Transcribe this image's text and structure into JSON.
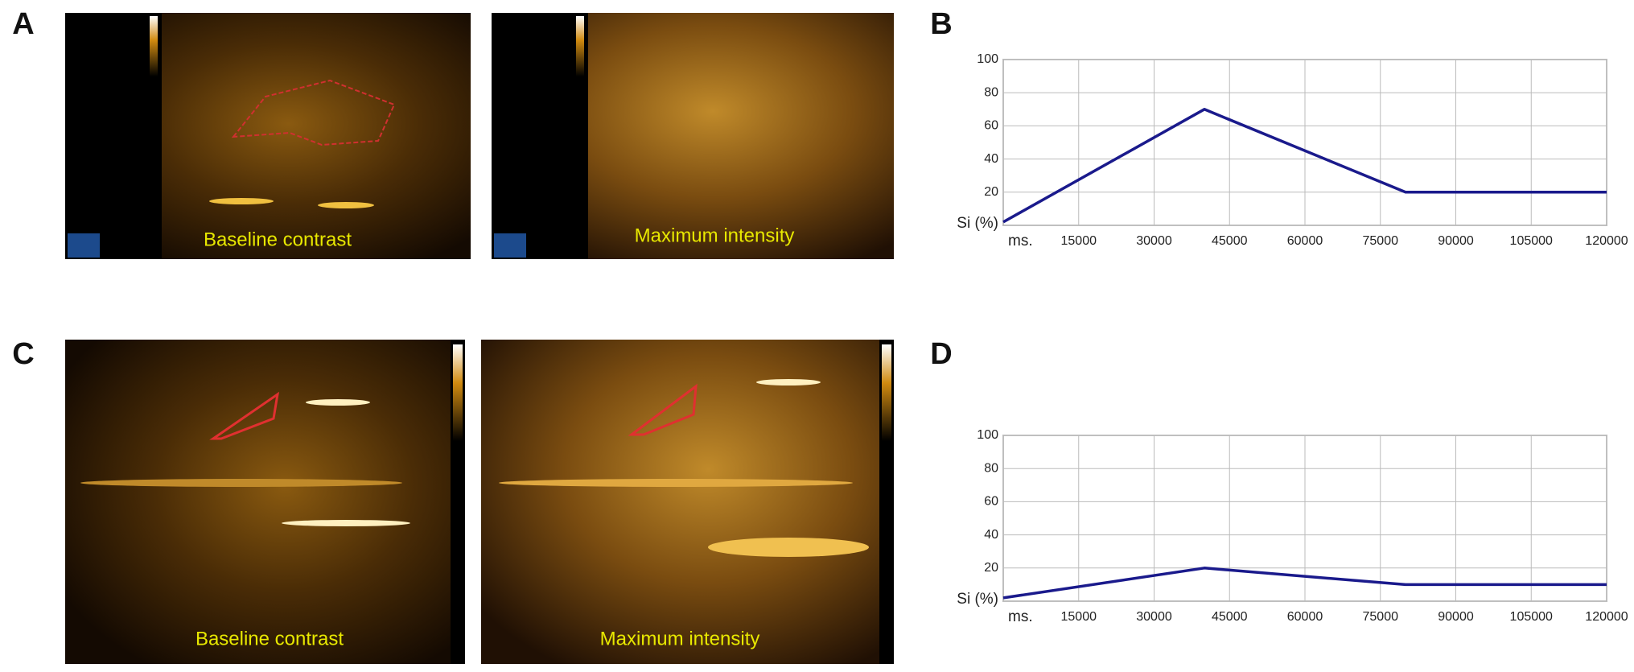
{
  "panel_labels": [
    "A",
    "B",
    "C",
    "D"
  ],
  "image_captions": [
    "Baseline contrast",
    "Maximum intensity",
    "Baseline contrast",
    "Maximum intensity"
  ],
  "chart_data": [
    {
      "type": "line",
      "x": [
        0,
        40000,
        80000,
        120000
      ],
      "values": [
        2,
        70,
        20,
        20
      ],
      "color": "#1a1a8c",
      "xlim": [
        0,
        120000
      ],
      "xticks": [
        {
          "value": 0,
          "label": "ms."
        },
        15000,
        30000,
        45000,
        60000,
        75000,
        90000,
        105000,
        120000
      ],
      "ylim": [
        0,
        100
      ],
      "yticks": [
        {
          "value": 0,
          "label": "Si (%)"
        },
        20,
        40,
        60,
        80,
        100
      ],
      "grid": true
    },
    {
      "type": "line",
      "x": [
        0,
        40000,
        80000,
        120000
      ],
      "values": [
        2,
        20,
        10,
        10
      ],
      "color": "#1a1a8c",
      "xlim": [
        0,
        120000
      ],
      "xticks": [
        {
          "value": 0,
          "label": "ms."
        },
        15000,
        30000,
        45000,
        60000,
        75000,
        90000,
        105000,
        120000
      ],
      "ylim": [
        0,
        100
      ],
      "yticks": [
        {
          "value": 0,
          "label": "Si (%)"
        },
        20,
        40,
        60,
        80,
        100
      ],
      "grid": true
    }
  ]
}
